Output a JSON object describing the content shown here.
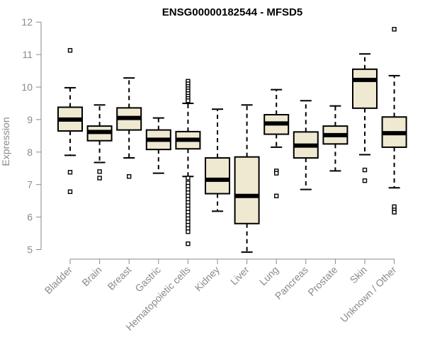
{
  "chart_data": {
    "type": "box",
    "title": "ENSG00000182544 - MFSD5",
    "xlabel": "",
    "ylabel": "Expression",
    "ylim": [
      4.8,
      12.2
    ],
    "yticks": [
      "5",
      "6",
      "7",
      "8",
      "9",
      "10",
      "11",
      "12"
    ],
    "box_fill": "#efe9d2",
    "categories": [
      "Bladder",
      "Brain",
      "Breast",
      "Gastric",
      "Hematopoietic cells",
      "Kidney",
      "Liver",
      "Lung",
      "Pancreas",
      "Prostate",
      "Skin",
      "Unknown / Other"
    ],
    "boxes": [
      {
        "whisker_low": 7.9,
        "q1": 8.65,
        "median": 9.0,
        "q3": 9.38,
        "whisker_high": 9.98,
        "outliers": [
          11.13,
          7.38,
          6.78
        ]
      },
      {
        "whisker_low": 7.68,
        "q1": 8.35,
        "median": 8.62,
        "q3": 8.8,
        "whisker_high": 9.45,
        "outliers": [
          7.4,
          7.2
        ]
      },
      {
        "whisker_low": 7.82,
        "q1": 8.68,
        "median": 9.05,
        "q3": 9.36,
        "whisker_high": 10.28,
        "outliers": [
          7.25
        ]
      },
      {
        "whisker_low": 7.35,
        "q1": 8.08,
        "median": 8.38,
        "q3": 8.68,
        "whisker_high": 9.05,
        "outliers": []
      },
      {
        "whisker_low": 7.25,
        "q1": 8.1,
        "median": 8.38,
        "q3": 8.63,
        "whisker_high": 9.5,
        "outliers": [
          10.18,
          10.1,
          10.02,
          9.95,
          9.88,
          9.8,
          9.72,
          9.65,
          9.58,
          7.2,
          7.05,
          6.95,
          6.85,
          6.75,
          6.65,
          6.55,
          6.45,
          6.35,
          6.25,
          6.15,
          6.05,
          5.95,
          5.85,
          5.75,
          5.65,
          5.55,
          5.18
        ]
      },
      {
        "whisker_low": 6.18,
        "q1": 6.72,
        "median": 7.15,
        "q3": 7.82,
        "whisker_high": 9.32,
        "outliers": []
      },
      {
        "whisker_low": 4.92,
        "q1": 5.8,
        "median": 6.65,
        "q3": 7.85,
        "whisker_high": 9.45,
        "outliers": []
      },
      {
        "whisker_low": 8.15,
        "q1": 8.55,
        "median": 8.88,
        "q3": 9.15,
        "whisker_high": 9.92,
        "outliers": [
          7.42,
          7.35,
          6.65
        ]
      },
      {
        "whisker_low": 6.85,
        "q1": 7.82,
        "median": 8.2,
        "q3": 8.62,
        "whisker_high": 9.58,
        "outliers": []
      },
      {
        "whisker_low": 7.42,
        "q1": 8.25,
        "median": 8.52,
        "q3": 8.8,
        "whisker_high": 9.42,
        "outliers": []
      },
      {
        "whisker_low": 7.92,
        "q1": 9.35,
        "median": 10.22,
        "q3": 10.55,
        "whisker_high": 11.02,
        "outliers": [
          7.45,
          7.12
        ]
      },
      {
        "whisker_low": 6.9,
        "q1": 8.15,
        "median": 8.58,
        "q3": 9.08,
        "whisker_high": 10.35,
        "outliers": [
          11.78,
          6.32,
          6.22,
          6.15
        ]
      }
    ]
  }
}
